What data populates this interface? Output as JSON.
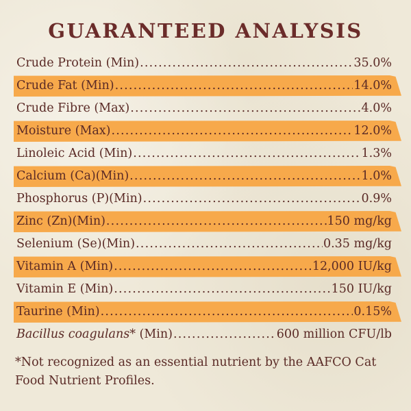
{
  "title": "GUARANTEED ANALYSIS",
  "colors": {
    "background": "#efe9d9",
    "text": "#5a2a26",
    "title": "#6b2c2a",
    "highlight": "#f7a94b"
  },
  "rows": [
    {
      "label": "Crude Protein (Min)",
      "value": "35.0%",
      "highlight": false
    },
    {
      "label": "Crude Fat (Min)",
      "value": "14.0%",
      "highlight": true
    },
    {
      "label": "Crude Fibre (Max)",
      "value": "4.0%",
      "highlight": false
    },
    {
      "label": "Moisture (Max)",
      "value": "12.0%",
      "highlight": true
    },
    {
      "label": "Linoleic Acid (Min)",
      "value": "1.3%",
      "highlight": false
    },
    {
      "label": "Calcium (Ca)(Min)",
      "value": "1.0%",
      "highlight": true
    },
    {
      "label": "Phosphorus (P)(Min)",
      "value": "0.9%",
      "highlight": false
    },
    {
      "label": "Zinc (Zn)(Min)",
      "value": "150 mg/kg",
      "highlight": true
    },
    {
      "label": "Selenium (Se)(Min)",
      "value": "0.35 mg/kg",
      "highlight": false
    },
    {
      "label": "Vitamin A (Min)",
      "value": "12,000 IU/kg",
      "highlight": true
    },
    {
      "label": "Vitamin E (Min)",
      "value": "150 IU/kg",
      "highlight": false
    },
    {
      "label": "Taurine (Min)",
      "value": "0.15%",
      "highlight": true
    },
    {
      "label_italic": "Bacillus coagulans*",
      "label": " (Min)",
      "value": "600 million CFU/lb",
      "highlight": false
    }
  ],
  "footnote": "*Not recognized as an essential nutrient by the AAFCO Cat Food Nutrient Profiles."
}
